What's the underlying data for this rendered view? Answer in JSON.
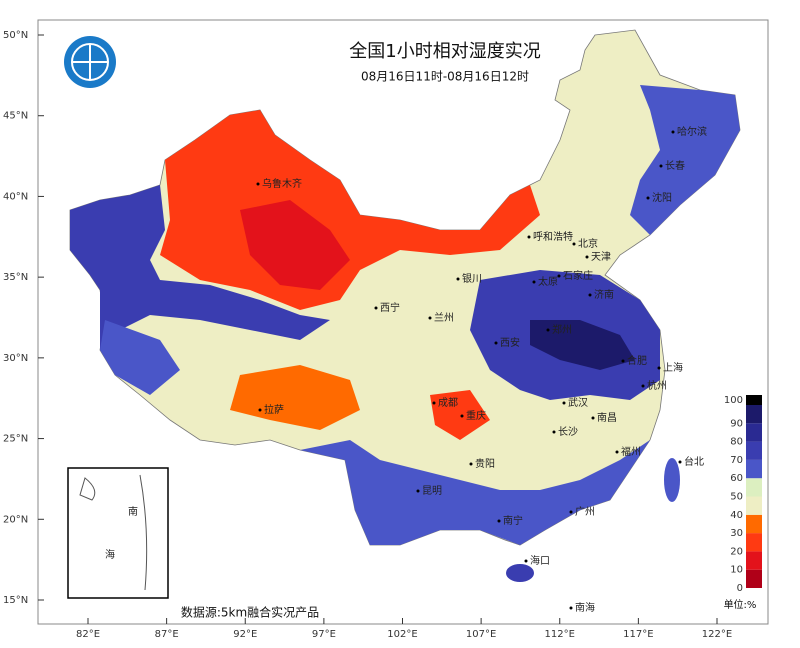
{
  "header": {
    "title": "全国1小时相对湿度实况",
    "subtitle": "08月16日11时-08月16日12时"
  },
  "lat_ticks": [
    {
      "value": 50,
      "label": "50°N"
    },
    {
      "value": 45,
      "label": "45°N"
    },
    {
      "value": 40,
      "label": "40°N"
    },
    {
      "value": 35,
      "label": "35°N"
    },
    {
      "value": 30,
      "label": "30°N"
    },
    {
      "value": 25,
      "label": "25°N"
    },
    {
      "value": 20,
      "label": "20°N"
    },
    {
      "value": 15,
      "label": "15°N"
    }
  ],
  "lon_ticks": [
    {
      "value": 82,
      "label": "82°E"
    },
    {
      "value": 87,
      "label": "87°E"
    },
    {
      "value": 92,
      "label": "92°E"
    },
    {
      "value": 97,
      "label": "97°E"
    },
    {
      "value": 102,
      "label": "102°E"
    },
    {
      "value": 107,
      "label": "107°E"
    },
    {
      "value": 112,
      "label": "112°E"
    },
    {
      "value": 117,
      "label": "117°E"
    },
    {
      "value": 122,
      "label": "122°E"
    }
  ],
  "legend": {
    "ticks": [
      0,
      10,
      20,
      30,
      40,
      50,
      60,
      70,
      80,
      90,
      100
    ],
    "colors": [
      "#b00018",
      "#e3121b",
      "#ff3a12",
      "#ff6a00",
      "#eeeec4",
      "#dcefc0",
      "#4a56c8",
      "#3a3db0",
      "#2a2a92",
      "#1c1a6a",
      "#000000"
    ],
    "unit": "单位:%"
  },
  "cities": [
    "乌鲁木齐",
    "哈尔滨",
    "长春",
    "沈阳",
    "呼和浩特",
    "北京",
    "天津",
    "银川",
    "太原",
    "石家庄",
    "济南",
    "西宁",
    "兰州",
    "郑州",
    "西安",
    "合肥",
    "上海",
    "杭州",
    "拉萨",
    "成都",
    "重庆",
    "武汉",
    "南昌",
    "长沙",
    "福州",
    "台北",
    "贵阳",
    "昆明",
    "广州",
    "南宁",
    "海口",
    "南海"
  ],
  "inset": [
    "南",
    "海"
  ],
  "source": "数据源:5km融合实况产品"
}
